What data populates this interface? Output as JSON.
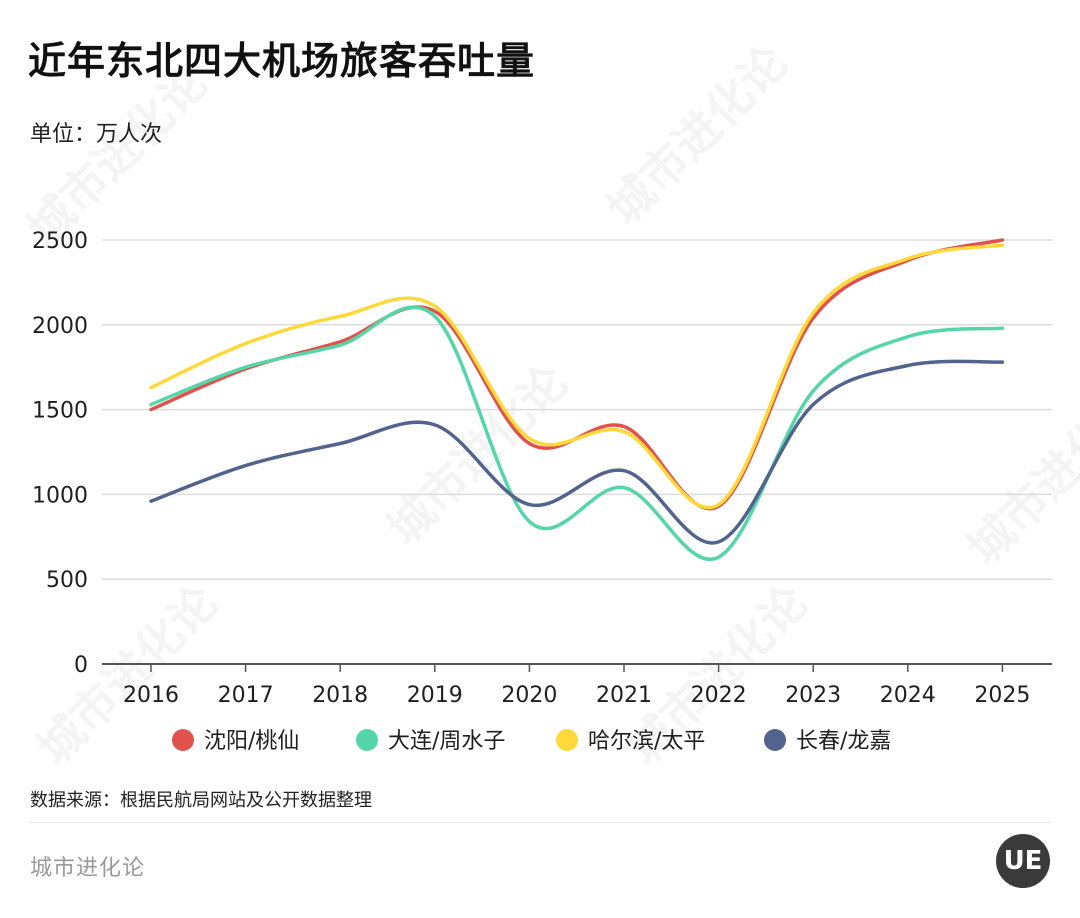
{
  "title": "近年东北四大机场旅客吞吐量",
  "unit": "单位：万人次",
  "source": "数据来源：根据民航局网站及公开数据整理",
  "brand": "城市进化论",
  "logo_text": "UE",
  "chart_data": {
    "type": "line",
    "title": "近年东北四大机场旅客吞吐量",
    "ylabel": "单位：万人次",
    "xlabel": "",
    "x": [
      "2016",
      "2017",
      "2018",
      "2019",
      "2020",
      "2021",
      "2022",
      "2023",
      "2024",
      "2025"
    ],
    "ylim": [
      0,
      2500
    ],
    "yticks": [
      0,
      500,
      1000,
      1500,
      2000,
      2500
    ],
    "grid": true,
    "legend_position": "bottom",
    "series": [
      {
        "name": "沈阳/桃仙",
        "color": "#e0524b",
        "values": [
          1500,
          1740,
          1900,
          2080,
          1300,
          1400,
          930,
          2040,
          2380,
          2500
        ]
      },
      {
        "name": "大连/周水子",
        "color": "#55d6a8",
        "values": [
          1530,
          1750,
          1880,
          2050,
          840,
          1040,
          630,
          1610,
          1930,
          1980
        ]
      },
      {
        "name": "哈尔滨/太平",
        "color": "#ffd83a",
        "values": [
          1630,
          1890,
          2050,
          2110,
          1330,
          1370,
          940,
          2070,
          2390,
          2470
        ]
      },
      {
        "name": "长春/龙嘉",
        "color": "#52638e",
        "values": [
          960,
          1170,
          1300,
          1410,
          940,
          1140,
          720,
          1530,
          1760,
          1780
        ]
      }
    ]
  }
}
